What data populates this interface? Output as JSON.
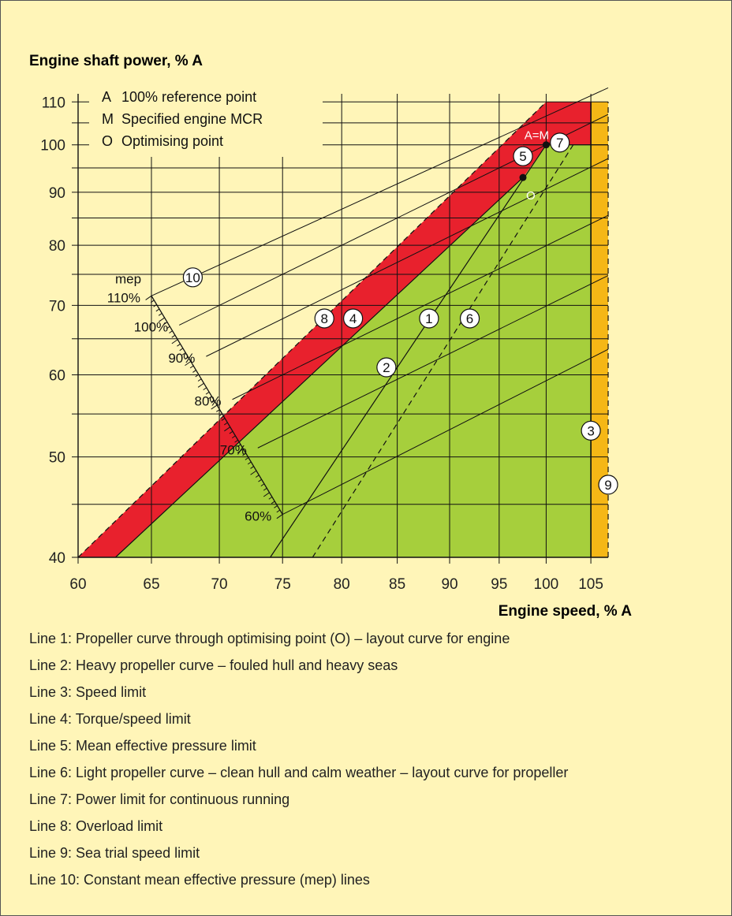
{
  "chart_data": {
    "type": "line",
    "ylabel": "Engine shaft power, % A",
    "xlabel": "Engine speed, % A",
    "x_axis": {
      "min": 60,
      "max": 107,
      "ticks": [
        60,
        65,
        70,
        75,
        80,
        85,
        90,
        95,
        100,
        105
      ],
      "scale": "log"
    },
    "y_axis": {
      "min": 40,
      "max": 112,
      "ticks": [
        40,
        50,
        60,
        70,
        80,
        90,
        100,
        110
      ],
      "scale": "log",
      "extra_gridlines": [
        45,
        55,
        65,
        75,
        85,
        95,
        105
      ]
    },
    "grid": true,
    "key": [
      {
        "symbol": "A",
        "text": "100% reference point"
      },
      {
        "symbol": "M",
        "text": "Specified engine MCR"
      },
      {
        "symbol": "O",
        "text": "Optimising point"
      }
    ],
    "regions": [
      {
        "id": "normal-operation",
        "color": "#a6cf3c",
        "points": [
          [
            62.5,
            40
          ],
          [
            97.5,
            93
          ],
          [
            100,
            100
          ],
          [
            105,
            100
          ],
          [
            105,
            40
          ]
        ]
      },
      {
        "id": "overload",
        "color": "#e8212d",
        "points": [
          [
            60,
            40
          ],
          [
            100,
            110
          ],
          [
            105,
            110
          ],
          [
            105,
            100
          ],
          [
            100,
            100
          ],
          [
            97.5,
            93
          ],
          [
            62.5,
            40
          ]
        ]
      },
      {
        "id": "sea-trial",
        "color": "#f5b716",
        "points": [
          [
            105,
            40
          ],
          [
            105,
            110
          ],
          [
            107,
            110
          ],
          [
            107,
            40
          ]
        ]
      }
    ],
    "points": [
      {
        "id": "A=M",
        "label": "A=M",
        "x": 100,
        "y": 100,
        "label_color": "#ffffff"
      },
      {
        "id": "O",
        "label": "O",
        "x": 97.5,
        "y": 93,
        "label_color": "#ffffff"
      }
    ],
    "lines": [
      {
        "id": "1",
        "label": "1",
        "points": [
          [
            74,
            40
          ],
          [
            100,
            100
          ]
        ],
        "dash": false,
        "marker_at": [
          88,
          68
        ]
      },
      {
        "id": "2",
        "label": "2",
        "marker_at": [
          84,
          61
        ]
      },
      {
        "id": "3",
        "label": "3",
        "points": [
          [
            105,
            40
          ],
          [
            105,
            110
          ]
        ],
        "dash": false,
        "marker_at": [
          105,
          53
        ]
      },
      {
        "id": "4",
        "label": "4",
        "points": [
          [
            62.5,
            40
          ],
          [
            97.5,
            93
          ]
        ],
        "dash": false,
        "marker_at": [
          81,
          68
        ]
      },
      {
        "id": "5",
        "label": "5",
        "marker_at": [
          97.5,
          97.5
        ]
      },
      {
        "id": "6",
        "label": "6",
        "points": [
          [
            77.5,
            40
          ],
          [
            103,
            100
          ]
        ],
        "dash": true,
        "marker_at": [
          92,
          68
        ]
      },
      {
        "id": "7",
        "label": "7",
        "points": [
          [
            97.5,
            100
          ],
          [
            107,
            100
          ]
        ],
        "dash": false,
        "marker_at": [
          101.5,
          100.5
        ]
      },
      {
        "id": "8",
        "label": "8",
        "points": [
          [
            60,
            40
          ],
          [
            100,
            110
          ]
        ],
        "dash": true,
        "marker_at": [
          78.5,
          68
        ]
      },
      {
        "id": "9",
        "label": "9",
        "points": [
          [
            107,
            40
          ],
          [
            107,
            110
          ]
        ],
        "dash": true,
        "marker_at": [
          107,
          47
        ]
      },
      {
        "id": "10",
        "label": "10",
        "marker_at": [
          68,
          74.5
        ]
      }
    ],
    "mep_lines": [
      {
        "label": "110%",
        "start": [
          65,
          71.5
        ],
        "end": [
          107,
          113.5
        ]
      },
      {
        "label": "100%",
        "start": [
          67,
          67
        ],
        "end": [
          107,
          107
        ]
      },
      {
        "label": "90%",
        "start": [
          69,
          62.5
        ],
        "end": [
          107,
          97
        ]
      },
      {
        "label": "80%",
        "start": [
          71,
          56.8
        ],
        "end": [
          107,
          85.5
        ]
      },
      {
        "label": "70%",
        "start": [
          73,
          51
        ],
        "end": [
          107,
          74.8
        ]
      },
      {
        "label": "60%",
        "start": [
          75,
          44
        ],
        "end": [
          107,
          63.5
        ]
      }
    ],
    "mep_axis_label": "mep"
  },
  "legend": [
    "Line 1: Propeller curve through optimising point (O) – layout curve for engine",
    "Line 2: Heavy propeller curve – fouled hull and heavy seas",
    "Line 3: Speed limit",
    "Line 4: Torque/speed limit",
    "Line 5: Mean effective pressure limit",
    "Line 6: Light propeller curve – clean hull and calm weather – layout curve for propeller",
    "Line 7: Power limit for continuous running",
    "Line 8: Overload limit",
    "Line 9: Sea trial speed limit",
    "Line 10: Constant mean effective pressure (mep) lines"
  ],
  "colors": {
    "green": "#a6cf3c",
    "red": "#e8212d",
    "orange": "#f5b716",
    "background": "#fff5b8"
  }
}
